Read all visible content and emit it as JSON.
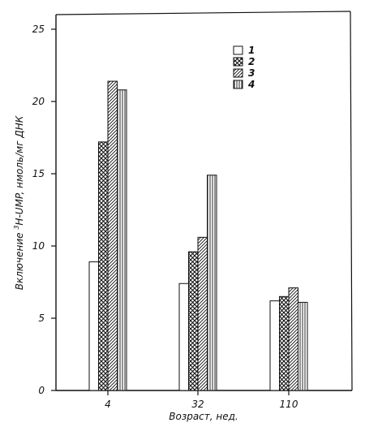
{
  "chart_data": {
    "type": "bar",
    "title": "",
    "xlabel": "Возраст, нед.",
    "ylabel_main": "Включение",
    "ylabel_sup": "3",
    "ylabel_rest": "Н-UMP, нмоль/мг ДНК",
    "categories": [
      "4",
      "32",
      "110"
    ],
    "series": [
      {
        "name": "1",
        "pattern": "blank",
        "values": [
          8.9,
          7.4,
          6.2
        ]
      },
      {
        "name": "2",
        "pattern": "crosshatch",
        "values": [
          17.2,
          9.6,
          6.5
        ]
      },
      {
        "name": "3",
        "pattern": "diagonal",
        "values": [
          21.4,
          10.6,
          7.1
        ]
      },
      {
        "name": "4",
        "pattern": "vertical",
        "values": [
          20.8,
          14.9,
          6.1
        ]
      }
    ],
    "ylim": [
      0,
      25
    ],
    "yticks": [
      "0",
      "5",
      "10",
      "15",
      "20",
      "25"
    ],
    "legend_position": "top-right",
    "grid": false
  }
}
